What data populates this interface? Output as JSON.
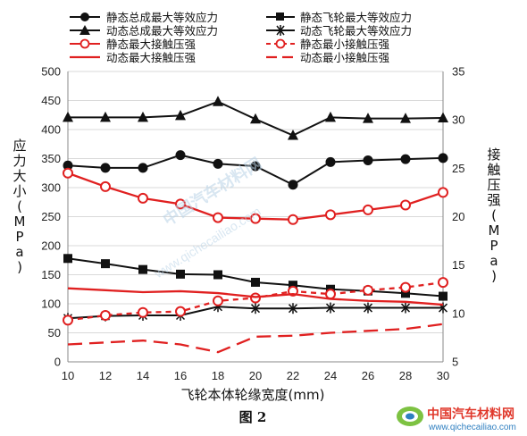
{
  "chart_data": {
    "type": "line",
    "x": [
      10,
      12,
      14,
      16,
      18,
      20,
      22,
      24,
      26,
      28,
      30
    ],
    "xlabel": "飞轮本体轮缘宽度(mm)",
    "ylabel_left": "应力大小(MPa)",
    "ylabel_right": "接触压强(MPa)",
    "ylim_left": [
      0,
      500
    ],
    "ylim_right": [
      5,
      35
    ],
    "yticks_left": [
      0,
      50,
      100,
      150,
      200,
      250,
      300,
      350,
      400,
      450,
      500
    ],
    "yticks_right": [
      5,
      10,
      15,
      20,
      25,
      30,
      35
    ],
    "xticks": [
      10,
      12,
      14,
      16,
      18,
      20,
      22,
      24,
      26,
      28,
      30
    ],
    "grid": true,
    "legend_position": "top",
    "caption": "图 2",
    "series": [
      {
        "name": "静态总成最大等效应力",
        "axis": "left",
        "color": "#111111",
        "marker": "circle-filled",
        "dash": "solid",
        "values": [
          338,
          334,
          334,
          356,
          341,
          337,
          305,
          344,
          347,
          349,
          351
        ]
      },
      {
        "name": "静态飞轮最大等效应力",
        "axis": "left",
        "color": "#111111",
        "marker": "square-filled",
        "dash": "solid",
        "values": [
          178,
          169,
          159,
          151,
          150,
          137,
          132,
          125,
          122,
          118,
          113
        ]
      },
      {
        "name": "动态总成最大等效应力",
        "axis": "left",
        "color": "#111111",
        "marker": "triangle-filled",
        "dash": "solid",
        "values": [
          421,
          421,
          421,
          424,
          448,
          418,
          390,
          421,
          419,
          419,
          420
        ]
      },
      {
        "name": "动态飞轮最大等效应力",
        "axis": "left",
        "color": "#111111",
        "marker": "asterisk",
        "dash": "solid",
        "values": [
          75,
          79,
          80,
          80,
          95,
          92,
          92,
          93,
          93,
          93,
          93
        ]
      },
      {
        "name": "静态最大接触压强",
        "axis": "right",
        "color": "#e02020",
        "marker": "circle-open",
        "dash": "solid",
        "values": [
          24.5,
          23.1,
          21.9,
          21.3,
          19.9,
          19.8,
          19.7,
          20.2,
          20.7,
          21.2,
          22.5
        ]
      },
      {
        "name": "静态最小接触压强",
        "axis": "right",
        "color": "#e02020",
        "marker": "circle-open",
        "dash": "dashed",
        "values": [
          9.3,
          9.8,
          10.1,
          10.2,
          11.3,
          11.6,
          12.3,
          12.0,
          12.4,
          12.7,
          13.2
        ]
      },
      {
        "name": "动态最大接触压强",
        "axis": "right",
        "color": "#e02020",
        "marker": "none",
        "dash": "solid",
        "values": [
          12.6,
          12.4,
          12.2,
          12.3,
          12.1,
          11.7,
          12.0,
          11.5,
          11.3,
          11.2,
          10.9
        ]
      },
      {
        "name": "动态最小接触压强",
        "axis": "right",
        "color": "#e02020",
        "marker": "none",
        "dash": "longdash",
        "values": [
          6.8,
          7.0,
          7.2,
          6.8,
          6.0,
          7.6,
          7.7,
          8.0,
          8.2,
          8.4,
          8.9
        ]
      }
    ]
  },
  "watermark": {
    "text": "中国汽车材料网",
    "url": "www.qichecailiao.com"
  },
  "logo": {
    "name": "中国汽车材料网",
    "url": "www.qichecailiao.com"
  }
}
